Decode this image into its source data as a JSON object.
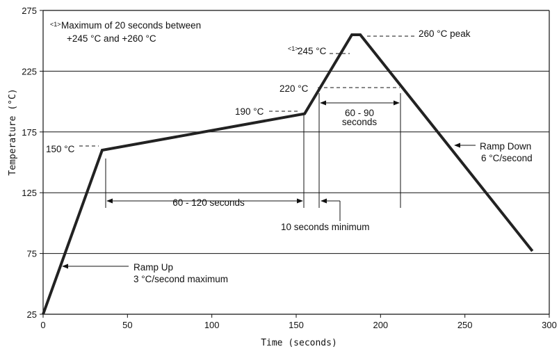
{
  "chart_data": {
    "type": "line",
    "xlabel": "Time (seconds)",
    "ylabel": "Temperature (°C)",
    "xlim": [
      0,
      300
    ],
    "ylim": [
      25,
      275
    ],
    "x_ticks": [
      0,
      50,
      100,
      150,
      200,
      250,
      300
    ],
    "y_ticks": [
      25,
      75,
      125,
      175,
      225,
      275
    ],
    "grid_y": [
      75,
      125,
      175,
      225
    ],
    "grid": "horizontal",
    "series": [
      {
        "x": [
          0,
          35,
          155,
          183,
          188,
          290
        ],
        "y": [
          25,
          160,
          190,
          255,
          255,
          77
        ]
      }
    ],
    "notes": {
      "marker": "<1>",
      "line1": "Maximum of 20 seconds between",
      "line2": "+245 °C and +260 °C"
    },
    "annotations": {
      "peak": "260 °C peak",
      "t245_marker": "<1>",
      "t245": "245 °C",
      "t220": "220 °C",
      "t190": "190 °C",
      "t150": "150 °C",
      "span_60_90_line1": "60 - 90",
      "span_60_90_line2": "seconds",
      "span_60_120": "60 - 120 seconds",
      "ten_seconds": "10 seconds minimum",
      "ramp_down_line1": "Ramp Down",
      "ramp_down_line2": "6 °C/second",
      "ramp_up_line1": "Ramp Up",
      "ramp_up_line2": "3 °C/second maximum"
    }
  }
}
